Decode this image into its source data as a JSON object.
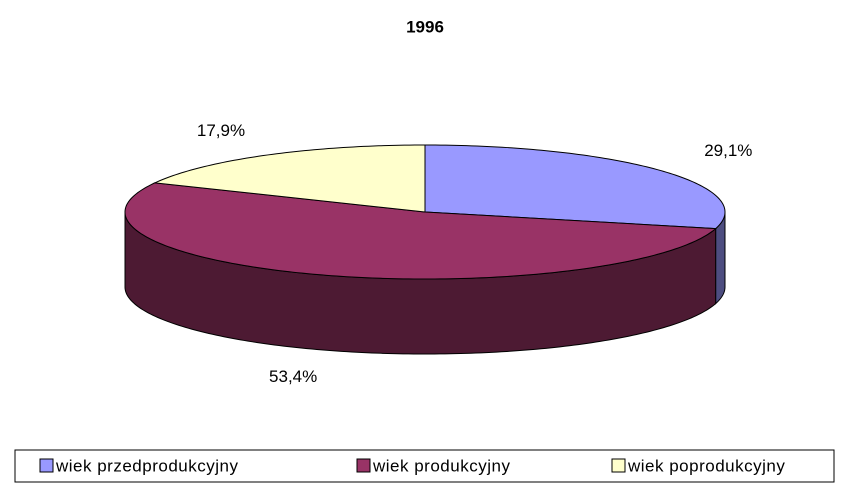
{
  "chart_data": {
    "type": "pie",
    "title": "1996",
    "categories": [
      "wiek przedprodukcyjny",
      "wiek produkcyjny",
      "wiek poprodukcyjny"
    ],
    "values": [
      29.1,
      53.4,
      17.9
    ],
    "value_labels": [
      "29,1%",
      "53,4%",
      "17,9%"
    ],
    "colors": [
      "#9999ff",
      "#993366",
      "#ffffcc"
    ],
    "legend": "bottom"
  }
}
